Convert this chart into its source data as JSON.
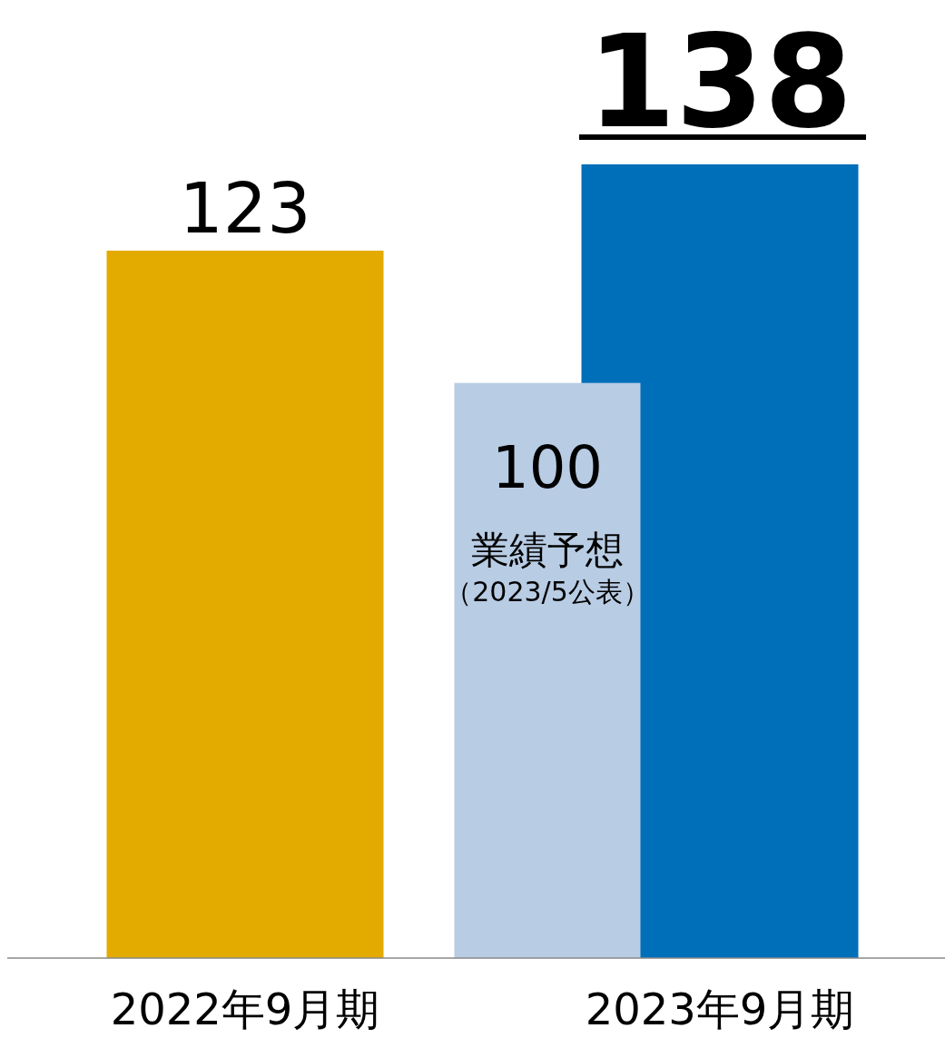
{
  "chart_data": {
    "type": "bar",
    "categories": [
      "2022年9月期",
      "2023年9月期"
    ],
    "series": [
      {
        "values": [
          123,
          138
        ],
        "colors": [
          "#e3aa00",
          "#006fba"
        ]
      },
      {
        "name": "業績予想",
        "color": "#b8cce4",
        "values": [
          null,
          100
        ]
      }
    ],
    "data_labels": true,
    "annotations": [
      "（2023/5公表）"
    ]
  }
}
